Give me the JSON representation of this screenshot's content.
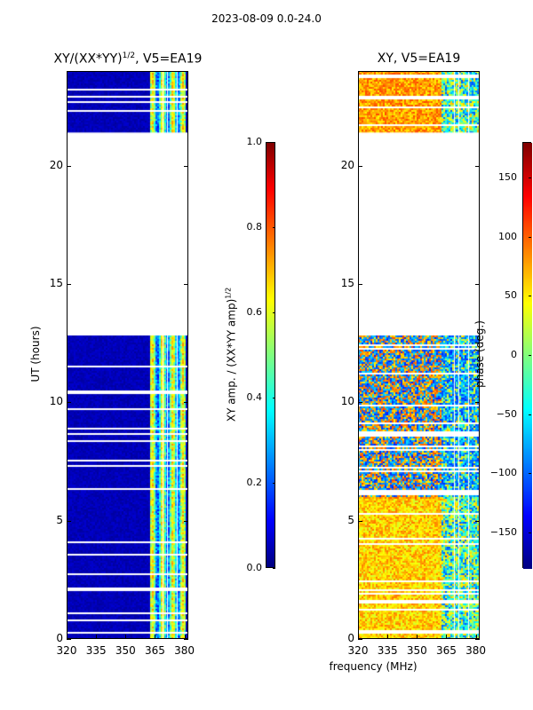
{
  "figure": {
    "suptitle": "2023-08-09 0.0-24.0",
    "xlabel_shared": "frequency (MHz)"
  },
  "chart_data": [
    {
      "type": "heatmap",
      "title": "XY/(XX*YY)^{1/2}, V5=EA19",
      "title_main": "XY/(XX*YY)",
      "title_sup": "1/2",
      "title_rest": ", V5=EA19",
      "xlabel": "frequency (MHz)",
      "ylabel": "UT (hours)",
      "xlim": [
        320,
        382
      ],
      "ylim": [
        0,
        24
      ],
      "x_ticks": [
        320,
        335,
        350,
        365,
        380
      ],
      "y_ticks": [
        0,
        5,
        10,
        15,
        20
      ],
      "gap_hours": [
        12.9,
        21.4
      ],
      "colorbar": {
        "label": "XY amp. / (XX*YY amp)^{1/2}",
        "label_main": "XY amp. / (XX*YY amp)",
        "label_sup": "1/2",
        "range": [
          0.0,
          1.0
        ],
        "ticks": [
          0.0,
          0.2,
          0.4,
          0.6,
          0.8,
          1.0
        ]
      }
    },
    {
      "type": "heatmap",
      "title": "XY, V5=EA19",
      "xlabel": "frequency (MHz)",
      "ylabel": "",
      "xlim": [
        320,
        382
      ],
      "ylim": [
        0,
        24
      ],
      "x_ticks": [
        320,
        335,
        350,
        365,
        380
      ],
      "y_ticks": [
        0,
        5,
        10,
        15,
        20
      ],
      "gap_hours": [
        12.9,
        21.4
      ],
      "colorbar": {
        "label": "phase (deg.)",
        "range": [
          -180,
          180
        ],
        "ticks": [
          -150,
          -100,
          -50,
          0,
          50,
          100,
          150
        ]
      }
    }
  ],
  "colors": {
    "jet_low": "#00007f",
    "jet_mid": "#7fff7f",
    "jet_high": "#7f0000"
  }
}
